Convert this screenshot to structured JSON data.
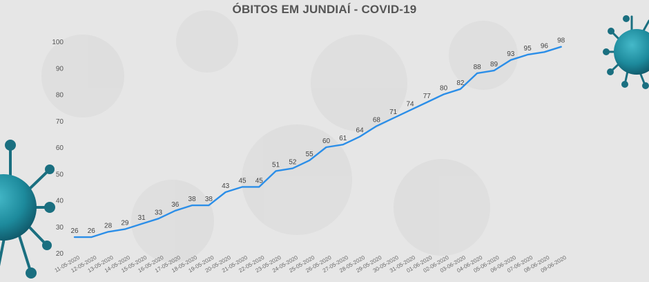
{
  "chart_data": {
    "type": "line",
    "title": "ÓBITOS EM JUNDIAÍ - COVID-19",
    "xlabel": "",
    "ylabel": "",
    "ylim": [
      20,
      100
    ],
    "yticks": [
      20,
      30,
      40,
      50,
      60,
      70,
      80,
      90,
      100
    ],
    "grid": false,
    "legend": "none",
    "line_color": "#2b8ee8",
    "categories": [
      "11-05-2020",
      "12-05-2020",
      "13-05-2020",
      "14-05-2020",
      "15-05-2020",
      "16-05-2020",
      "17-05-2020",
      "18-05-2020",
      "19-05-2020",
      "20-05-2020",
      "21-05-2020",
      "22-05-2020",
      "23-05-2020",
      "24-05-2020",
      "25-05-2020",
      "26-05-2020",
      "27-05-2020",
      "28-05-2020",
      "29-05-2020",
      "30-05-2020",
      "31-05-2020",
      "01-06-2020",
      "02-06-2020",
      "03-06-2020",
      "04-06-2020",
      "05-06-2020",
      "06-06-2020",
      "07-06-2020",
      "08-06-2020",
      "09-06-2020"
    ],
    "series": [
      {
        "values": [
          26,
          26,
          28,
          29,
          31,
          33,
          36,
          38,
          38,
          43,
          45,
          45,
          51,
          52,
          55,
          60,
          61,
          64,
          68,
          71,
          74,
          77,
          80,
          82,
          88,
          89,
          93,
          95,
          96,
          98
        ]
      }
    ]
  },
  "decor": {
    "left_virus_icon": "virus-icon",
    "right_virus_icon": "virus-icon",
    "virus_color": "#1d7f93"
  }
}
